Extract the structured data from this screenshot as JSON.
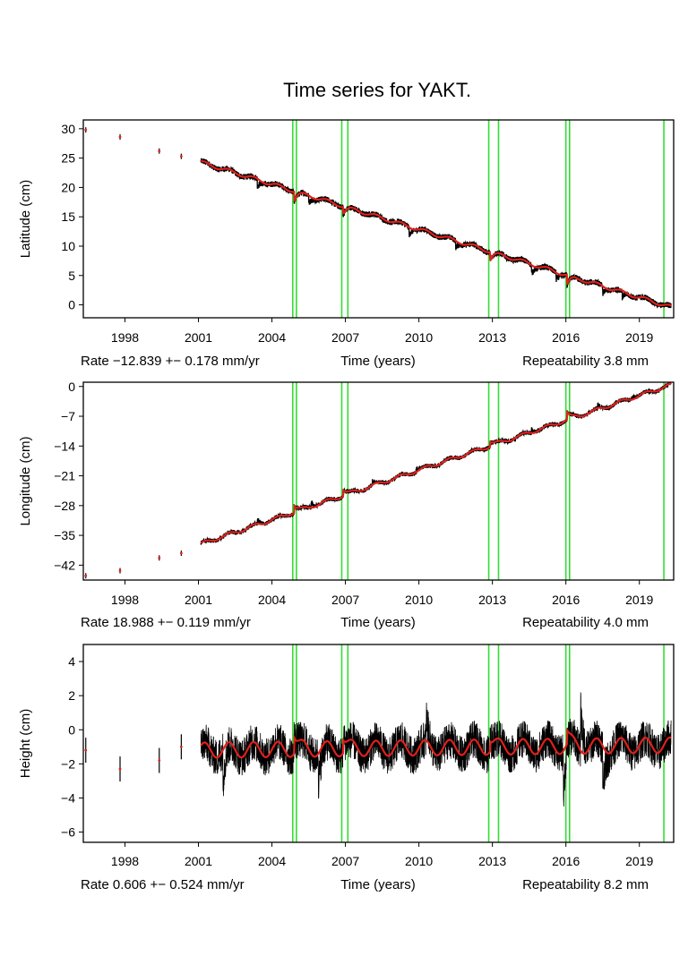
{
  "chart_data": {
    "type": "line",
    "title": "Time series for YAKT.",
    "xlabel": "Time (years)",
    "xlim": [
      1996.3,
      2020.4
    ],
    "xticks": [
      1998,
      2001,
      2004,
      2007,
      2010,
      2013,
      2016,
      2019
    ],
    "event_lines": [
      2004.85,
      2005.0,
      2006.85,
      2007.1,
      2012.85,
      2013.25,
      2016.0,
      2016.15,
      2020.0
    ],
    "series_colors": {
      "observations": "#000000",
      "model": "#e0201b",
      "events": "#33dd33"
    },
    "panels": [
      {
        "ylabel": "Latitude (cm)",
        "ylim": [
          -2.2,
          31.5
        ],
        "yticks": [
          30,
          25,
          20,
          15,
          10,
          5,
          0
        ],
        "rate_label": "Rate −12.839 +− 0.178 mm/yr",
        "repeatability_label": "Repeatability 3.8 mm",
        "trend_start": [
          2001.1,
          24.3
        ],
        "trend_end": [
          2020.3,
          -0.4
        ],
        "sparse_points": [
          [
            1996.4,
            29.8
          ],
          [
            1997.8,
            28.6
          ],
          [
            1999.4,
            26.2
          ],
          [
            2000.3,
            25.3
          ]
        ],
        "seasonal_amplitude": 0.3,
        "noise": 0.5,
        "jumps": [
          [
            2004.9,
            -1.8
          ],
          [
            2006.9,
            -1.4
          ],
          [
            2012.9,
            -1.6
          ],
          [
            2016.05,
            -1.8
          ]
        ],
        "dips": [
          [
            2003.4,
            -1.5
          ],
          [
            2005.5,
            -1.4
          ],
          [
            2009.6,
            -1.3
          ],
          [
            2011.5,
            -1.2
          ],
          [
            2014.6,
            -1.5
          ],
          [
            2015.6,
            -1.2
          ],
          [
            2017.5,
            -1.3
          ],
          [
            2018.3,
            -1.2
          ]
        ]
      },
      {
        "ylabel": "Longitude (cm)",
        "ylim": [
          -45.5,
          1.0
        ],
        "yticks": [
          0,
          -7,
          -14,
          -21,
          -28,
          -35,
          -42
        ],
        "rate_label": "Rate 18.988 +− 0.119 mm/yr",
        "repeatability_label": "Repeatability 4.0 mm",
        "trend_start": [
          2001.1,
          -37.0
        ],
        "trend_end": [
          2020.3,
          0.4
        ],
        "sparse_points": [
          [
            1996.4,
            -44.5
          ],
          [
            1997.8,
            -43.3
          ],
          [
            1999.4,
            -40.3
          ],
          [
            2000.3,
            -39.2
          ]
        ],
        "seasonal_amplitude": 0.4,
        "noise": 0.5,
        "jumps": [
          [
            2004.9,
            1.8
          ],
          [
            2006.9,
            1.6
          ],
          [
            2012.9,
            1.3
          ],
          [
            2016.05,
            1.8
          ]
        ],
        "dips": [
          [
            2003.4,
            1.2
          ],
          [
            2005.6,
            1.3
          ],
          [
            2008.1,
            1.0
          ],
          [
            2009.9,
            0.8
          ],
          [
            2014.6,
            0.9
          ],
          [
            2017.3,
            0.9
          ],
          [
            2018.7,
            0.8
          ]
        ]
      },
      {
        "ylabel": "Height (cm)",
        "ylim": [
          -6.6,
          5.0
        ],
        "yticks": [
          4,
          2,
          0,
          -2,
          -4,
          -6
        ],
        "rate_label": "Rate 0.606 +− 0.524 mm/yr",
        "repeatability_label": "Repeatability 8.2 mm",
        "trend_start": [
          2001.1,
          -1.2
        ],
        "trend_end": [
          2020.3,
          -0.9
        ],
        "sparse_points": [
          [
            1996.4,
            -1.2
          ],
          [
            1997.8,
            -2.3
          ],
          [
            1999.4,
            -1.8
          ],
          [
            2000.3,
            -1.0
          ]
        ],
        "seasonal_amplitude": 0.45,
        "noise": 1.1,
        "jumps": [
          [
            2004.9,
            1.0
          ],
          [
            2006.9,
            0.8
          ],
          [
            2012.9,
            0.6
          ],
          [
            2016.05,
            0.8
          ]
        ],
        "dips": [
          [
            2002.0,
            -2.0
          ],
          [
            2005.9,
            -1.8
          ],
          [
            2010.3,
            1.5
          ],
          [
            2015.9,
            -2.6
          ],
          [
            2016.6,
            2.5
          ],
          [
            2017.5,
            -2.4
          ]
        ]
      }
    ]
  }
}
